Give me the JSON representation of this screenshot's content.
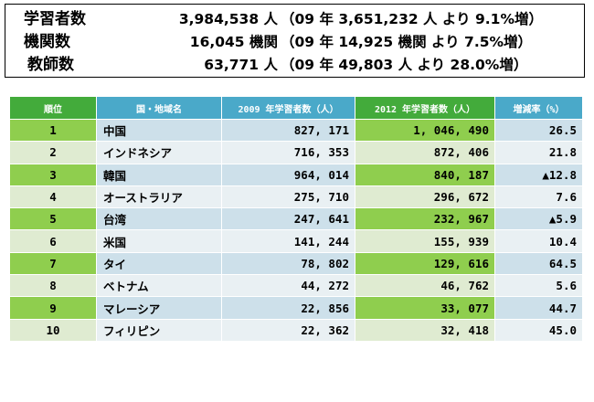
{
  "summary": {
    "rows": [
      {
        "label": "学習者数",
        "value": "3,984,538 人",
        "note": "（09 年 3,651,232 人 より 9.1%増）"
      },
      {
        "label": "機関数",
        "value": "16,045 機関",
        "note": "（09 年 14,925 機関 より 7.5%増）"
      },
      {
        "label": "教師数",
        "value": "63,771 人",
        "note": "（09 年 49,803 人 より 28.0%増）"
      }
    ]
  },
  "table": {
    "headers": [
      "順位",
      "国・地域名",
      "2009 年学習者数（人）",
      "2012 年学習者数（人）",
      "増減率（%）"
    ],
    "rows": [
      {
        "rank": "1",
        "name": "中国",
        "y2009": "827, 171",
        "y2012": "1, 046, 490",
        "rate": "26.5"
      },
      {
        "rank": "2",
        "name": "インドネシア",
        "y2009": "716, 353",
        "y2012": "872, 406",
        "rate": "21.8"
      },
      {
        "rank": "3",
        "name": "韓国",
        "y2009": "964, 014",
        "y2012": "840, 187",
        "rate": "▲12.8"
      },
      {
        "rank": "4",
        "name": "オーストラリア",
        "y2009": "275, 710",
        "y2012": "296, 672",
        "rate": "7.6"
      },
      {
        "rank": "5",
        "name": "台湾",
        "y2009": "247, 641",
        "y2012": "232, 967",
        "rate": "▲5.9"
      },
      {
        "rank": "6",
        "name": "米国",
        "y2009": "141, 244",
        "y2012": "155, 939",
        "rate": "10.4"
      },
      {
        "rank": "7",
        "name": "タイ",
        "y2009": "78, 802",
        "y2012": "129, 616",
        "rate": "64.5"
      },
      {
        "rank": "8",
        "name": "ベトナム",
        "y2009": "44, 272",
        "y2012": "46, 762",
        "rate": "5.6"
      },
      {
        "rank": "9",
        "name": "マレーシア",
        "y2009": "22, 856",
        "y2012": "33, 077",
        "rate": "44.7"
      },
      {
        "rank": "10",
        "name": "フィリピン",
        "y2009": "22, 362",
        "y2012": "32, 418",
        "rate": "45.0"
      }
    ]
  },
  "colors": {
    "header_green": "#43ab3b",
    "header_blue": "#4aa9c9",
    "row_green": "#8fce4e",
    "row_green_light": "#dfebd1",
    "row_blue": "#cde0ea",
    "row_blue_light": "#e9f0f3"
  }
}
